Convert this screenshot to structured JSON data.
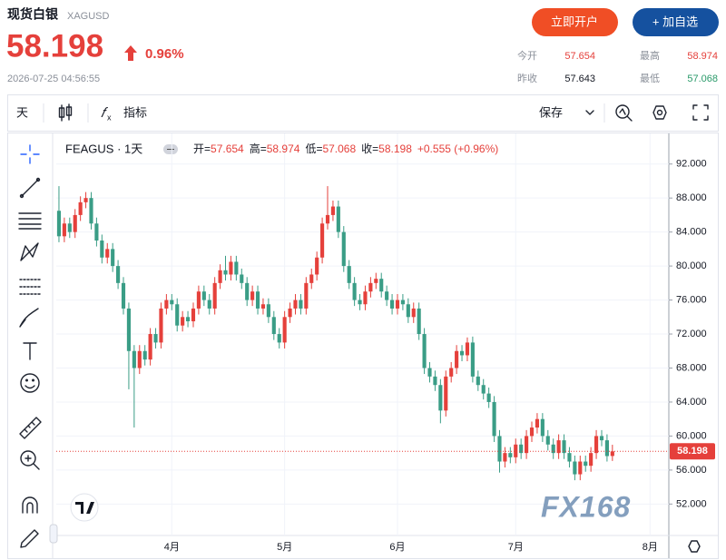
{
  "header": {
    "title": "现货白银",
    "symbol": "XAGUSD",
    "price": "58.198",
    "change_pct": "0.96%",
    "timestamp": "2026-07-25 04:56:55",
    "buttons": [
      "立即开户",
      "+ 加自选"
    ],
    "stats": [
      {
        "label": "今开",
        "value": "57.654"
      },
      {
        "label": "最高",
        "value": "58.974"
      },
      {
        "label": "昨收",
        "value": "57.643"
      },
      {
        "label": "最低",
        "value": "57.068"
      }
    ]
  },
  "toolbar": {
    "interval": "天",
    "indicators": "指标",
    "save": "保存"
  },
  "legend": {
    "name": "FEAGUS · 1天",
    "items": [
      {
        "label": "开=",
        "value": "57.654"
      },
      {
        "label": "高=",
        "value": "58.974"
      },
      {
        "label": "低=",
        "value": "57.068"
      },
      {
        "label": "收=",
        "value": "58.198"
      }
    ],
    "change": "+0.555 (+0.96%)"
  },
  "watermark": "FX168",
  "chart_data": {
    "type": "candlestick",
    "up_color": "#e5403b",
    "down_color": "#3a9d86",
    "grid": true,
    "xlim": [
      -0.5,
      113.5
    ],
    "xticks": [
      {
        "value": 21,
        "label": "4月"
      },
      {
        "value": 42,
        "label": "5月"
      },
      {
        "value": 63,
        "label": "6月"
      },
      {
        "value": 85,
        "label": "7月"
      },
      {
        "value": 110,
        "label": "8月"
      }
    ],
    "ylim": [
      48.3,
      95.6
    ],
    "yticks": [
      {
        "value": 52,
        "label": "52.000"
      },
      {
        "value": 56,
        "label": "56.000"
      },
      {
        "value": 60,
        "label": "60.000"
      },
      {
        "value": 64,
        "label": "64.000"
      },
      {
        "value": 68,
        "label": "68.000"
      },
      {
        "value": 72,
        "label": "72.000"
      },
      {
        "value": 76,
        "label": "76.000"
      },
      {
        "value": 80,
        "label": "80.000"
      },
      {
        "value": 84,
        "label": "84.000"
      },
      {
        "value": 88,
        "label": "88.000"
      },
      {
        "value": 92,
        "label": "92.000"
      }
    ],
    "last_price": 58.198,
    "open": [
      86.5,
      83.5,
      85,
      84,
      86,
      87.5,
      88,
      85,
      83,
      81,
      82,
      80,
      78,
      75,
      70,
      68,
      70,
      69,
      72,
      71,
      75,
      76,
      75.5,
      73,
      74,
      73.5,
      75,
      77,
      76,
      75,
      78,
      79.5,
      79,
      80.5,
      79,
      78,
      76,
      77,
      75,
      75.5,
      74,
      72,
      71,
      74,
      75,
      76,
      75,
      78,
      79,
      81,
      85,
      86,
      87,
      84,
      80,
      78,
      76,
      75.5,
      77,
      78,
      78.5,
      77,
      76,
      75,
      76,
      75.5,
      74,
      75,
      72,
      68,
      67,
      66,
      63,
      67,
      68,
      70,
      69.5,
      71,
      67,
      66,
      65,
      64,
      60,
      57,
      58,
      57.5,
      59,
      58,
      60,
      61,
      62,
      60,
      59,
      58,
      59.5,
      58,
      57,
      55.5,
      57,
      56.5,
      58,
      60,
      59.5,
      57.654
    ],
    "high": [
      89.4,
      85.7,
      85.7,
      86.7,
      88.2,
      88.7,
      88.7,
      85.7,
      83.7,
      82.7,
      82.7,
      80.7,
      78.7,
      75.7,
      70.7,
      70.7,
      70.7,
      72.7,
      72.7,
      75.7,
      76.7,
      76.7,
      76.2,
      74.7,
      74.7,
      75.7,
      77.7,
      77.7,
      76.7,
      78.7,
      80.2,
      81.2,
      81.2,
      81.2,
      79.7,
      78.7,
      77.7,
      77.7,
      76.2,
      76.2,
      74.7,
      72.7,
      74.7,
      75.7,
      76.7,
      76.7,
      78.7,
      79.7,
      81.7,
      85.7,
      89.4,
      87.7,
      87.7,
      84.7,
      80.7,
      78.7,
      76.7,
      77.7,
      78.7,
      79.2,
      79.2,
      77.7,
      76.7,
      76.7,
      76.7,
      76.2,
      75.7,
      75.7,
      72.7,
      68.7,
      67.7,
      66.7,
      67.7,
      68.7,
      70.7,
      70.7,
      71.6,
      71.7,
      67.7,
      66.7,
      65.7,
      64.7,
      60.7,
      58.7,
      58.7,
      59.7,
      59.7,
      60.7,
      61.7,
      62.7,
      62.7,
      60.7,
      59.7,
      60.2,
      60.2,
      58.7,
      57.7,
      57.7,
      57.7,
      58.7,
      60.7,
      60.7,
      60.2,
      58.974
    ],
    "low": [
      82.8,
      82.8,
      83.3,
      83.3,
      85.3,
      86.8,
      84.3,
      82.3,
      80.3,
      80.3,
      79.3,
      77.3,
      74.3,
      65.5,
      61,
      67.3,
      68.3,
      68.3,
      70.3,
      70.3,
      74.3,
      74.8,
      72.3,
      72.3,
      72.8,
      72.8,
      74.3,
      75.3,
      74.3,
      74.3,
      77.3,
      78.3,
      78.3,
      78.3,
      77.3,
      75.3,
      75.3,
      74.3,
      74.3,
      73.3,
      71.3,
      70.3,
      70.3,
      73.3,
      74.3,
      74.3,
      74.3,
      77.3,
      78.3,
      80.3,
      84.3,
      85.3,
      83.3,
      79.3,
      77.3,
      75.3,
      74.8,
      74.8,
      76.3,
      77.3,
      76.3,
      75.3,
      74.3,
      74.3,
      74.8,
      73.3,
      73.3,
      71.3,
      67.3,
      66.3,
      65.3,
      61.5,
      62.3,
      66.3,
      67.3,
      68.8,
      68.8,
      66.3,
      65.3,
      64.3,
      63.3,
      59.3,
      55.7,
      56.3,
      56.8,
      56.8,
      57.3,
      57.3,
      59.3,
      60.3,
      59.3,
      58.3,
      57.3,
      57.3,
      57.3,
      56.3,
      54.8,
      54.8,
      55.8,
      55.8,
      57.3,
      58.8,
      57,
      57.068
    ],
    "close": [
      83.5,
      85,
      84,
      86,
      87.5,
      88,
      85,
      83,
      81,
      82,
      80,
      78,
      75,
      70,
      68,
      70,
      69,
      72,
      71,
      75,
      76,
      75.5,
      73,
      74,
      73.5,
      75,
      77,
      76,
      75,
      78,
      79.5,
      79,
      80.5,
      79,
      78,
      76,
      77,
      75,
      75.5,
      74,
      72,
      71,
      74,
      75,
      76,
      75,
      78,
      79,
      81,
      85,
      86,
      87,
      84,
      80,
      78,
      76,
      75.5,
      77,
      78,
      78.5,
      77,
      76,
      75,
      76,
      75.5,
      74,
      75,
      72,
      68,
      67,
      66,
      63,
      67,
      68,
      70,
      69.5,
      71,
      67,
      66,
      65,
      64,
      60,
      57,
      58,
      57.5,
      59,
      58,
      60,
      61,
      62,
      60,
      59,
      58,
      59.5,
      58,
      57,
      55.5,
      57,
      56.5,
      58,
      60,
      59.5,
      57.643,
      58.198
    ]
  }
}
